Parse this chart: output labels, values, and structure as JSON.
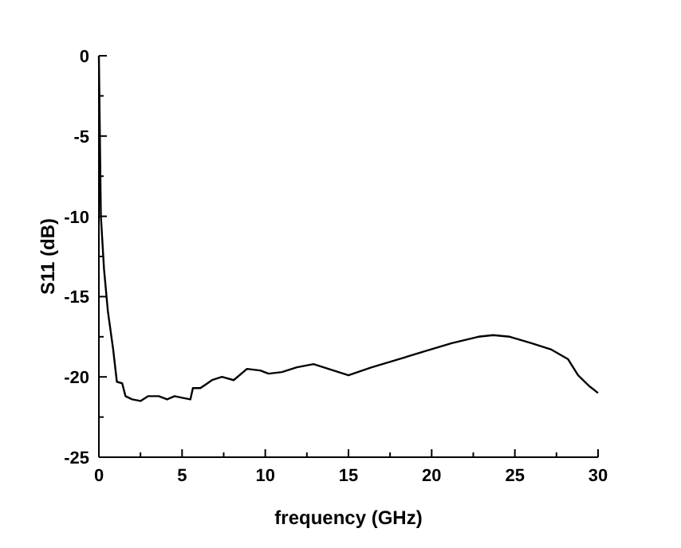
{
  "chart_data": {
    "type": "line",
    "xlabel": "frequency (GHz)",
    "ylabel": "S11 (dB)",
    "x": [
      0,
      0.06,
      0.12,
      0.31,
      0.54,
      0.86,
      1.08,
      1.4,
      1.6,
      2.0,
      2.5,
      2.95,
      3.6,
      4.1,
      4.55,
      5.0,
      5.5,
      5.65,
      6.1,
      6.8,
      7.4,
      8.1,
      8.9,
      9.7,
      10.2,
      11.0,
      11.9,
      12.9,
      13.8,
      15.0,
      16.4,
      18.0,
      19.6,
      21.2,
      22.8,
      23.7,
      24.7,
      26.0,
      27.2,
      28.2,
      28.8,
      29.5,
      30.0
    ],
    "series": [
      {
        "color": "#000000",
        "values": [
          0,
          -5,
          -10,
          -13.3,
          -15.9,
          -18.3,
          -20.3,
          -20.4,
          -21.2,
          -21.4,
          -21.5,
          -21.2,
          -21.2,
          -21.4,
          -21.2,
          -21.3,
          -21.4,
          -20.7,
          -20.7,
          -20.2,
          -20.0,
          -20.2,
          -19.5,
          -19.6,
          -19.8,
          -19.7,
          -19.4,
          -19.2,
          -19.5,
          -19.9,
          -19.4,
          -18.9,
          -18.4,
          -17.9,
          -17.5,
          -17.4,
          -17.5,
          -17.9,
          -18.3,
          -18.9,
          -19.9,
          -20.6,
          -21.0
        ]
      }
    ],
    "xlim": [
      0,
      30
    ],
    "ylim": [
      -25,
      0
    ],
    "xticks": [
      0,
      {
        "value": 2.5,
        "label": null
      },
      5,
      {
        "value": 7.5,
        "label": null
      },
      10,
      {
        "value": 12.5,
        "label": null
      },
      15,
      {
        "value": 17.5,
        "label": null
      },
      20,
      {
        "value": 22.5,
        "label": null
      },
      25,
      {
        "value": 27.5,
        "label": null
      },
      30
    ],
    "yticks": [
      -25,
      {
        "value": -22.5,
        "label": null
      },
      -20,
      {
        "value": -17.5,
        "label": null
      },
      -15,
      {
        "value": -12.5,
        "label": null
      },
      -10,
      {
        "value": -7.5,
        "label": null
      },
      -5,
      {
        "value": -2.5,
        "label": null
      },
      0
    ],
    "grid": false,
    "marker": "none",
    "line_style": "solid"
  }
}
